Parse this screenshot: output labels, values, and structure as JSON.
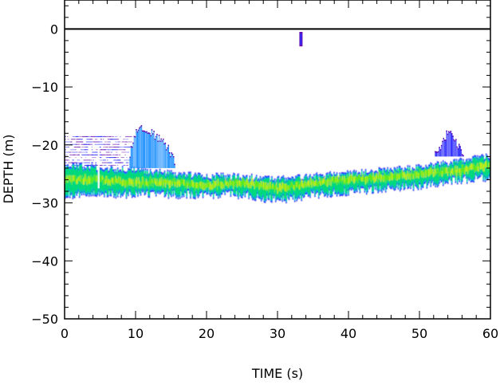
{
  "chart_data": {
    "type": "heatmap",
    "title": "",
    "xlabel": "TIME (s)",
    "ylabel": "DEPTH (m)",
    "xlim": [
      0,
      60
    ],
    "ylim": [
      -50,
      5
    ],
    "x_ticks": [
      {
        "value": 0,
        "label": "0"
      },
      {
        "value": 10,
        "label": "10"
      },
      {
        "value": 20,
        "label": "20"
      },
      {
        "value": 30,
        "label": "30"
      },
      {
        "value": 40,
        "label": "40"
      },
      {
        "value": 50,
        "label": "50"
      },
      {
        "value": 60,
        "label": "60"
      }
    ],
    "y_ticks": [
      {
        "value": 0,
        "label": "0"
      },
      {
        "value": -10,
        "label": "−10"
      },
      {
        "value": -20,
        "label": "−20"
      },
      {
        "value": -30,
        "label": "−30"
      },
      {
        "value": -40,
        "label": "−40"
      },
      {
        "value": -50,
        "label": "−50"
      }
    ],
    "surface_line_depth": 0,
    "colormap": [
      "#ffffff",
      "#6a0dad",
      "#2a2aff",
      "#1e90ff",
      "#00c8c8",
      "#00e070",
      "#66ee00",
      "#c8f000"
    ],
    "bottom_echo_band": {
      "time": [
        0,
        5,
        10,
        15,
        20,
        25,
        30,
        35,
        40,
        45,
        50,
        55,
        60
      ],
      "top_depth": [
        -23.5,
        -24.0,
        -24.5,
        -25.0,
        -25.5,
        -25.5,
        -26.0,
        -25.5,
        -25.0,
        -24.5,
        -24.0,
        -23.0,
        -22.0
      ],
      "bottom_depth": [
        -28.5,
        -28.5,
        -28.5,
        -28.5,
        -28.5,
        -28.5,
        -29.5,
        -28.5,
        -28.0,
        -27.5,
        -27.0,
        -26.0,
        -25.5
      ],
      "core_depth": [
        -26.0,
        -26.0,
        -26.5,
        -26.5,
        -27.0,
        -26.5,
        -27.5,
        -26.5,
        -26.0,
        -25.5,
        -25.0,
        -24.5,
        -23.5
      ]
    },
    "plumes": [
      {
        "time_start": 9.0,
        "time_end": 15.5,
        "time_peak": 10.5,
        "top_depth": -16.5,
        "base_depth": -24.0
      },
      {
        "time_start": 52.0,
        "time_end": 56.5,
        "time_peak": 54.0,
        "top_depth": -17.5,
        "base_depth": -22.0
      }
    ],
    "noise_patch": {
      "time_start": 0,
      "time_end": 9.0,
      "top_depth": -18.5,
      "bottom_depth": -23.5
    },
    "vertical_spike": {
      "time": 4.8,
      "top_depth": -20.0,
      "bottom_depth": -27.5
    },
    "surface_blip": {
      "time": 33.3,
      "top_depth": -0.5,
      "bottom_depth": -3.0
    },
    "grid": false
  }
}
